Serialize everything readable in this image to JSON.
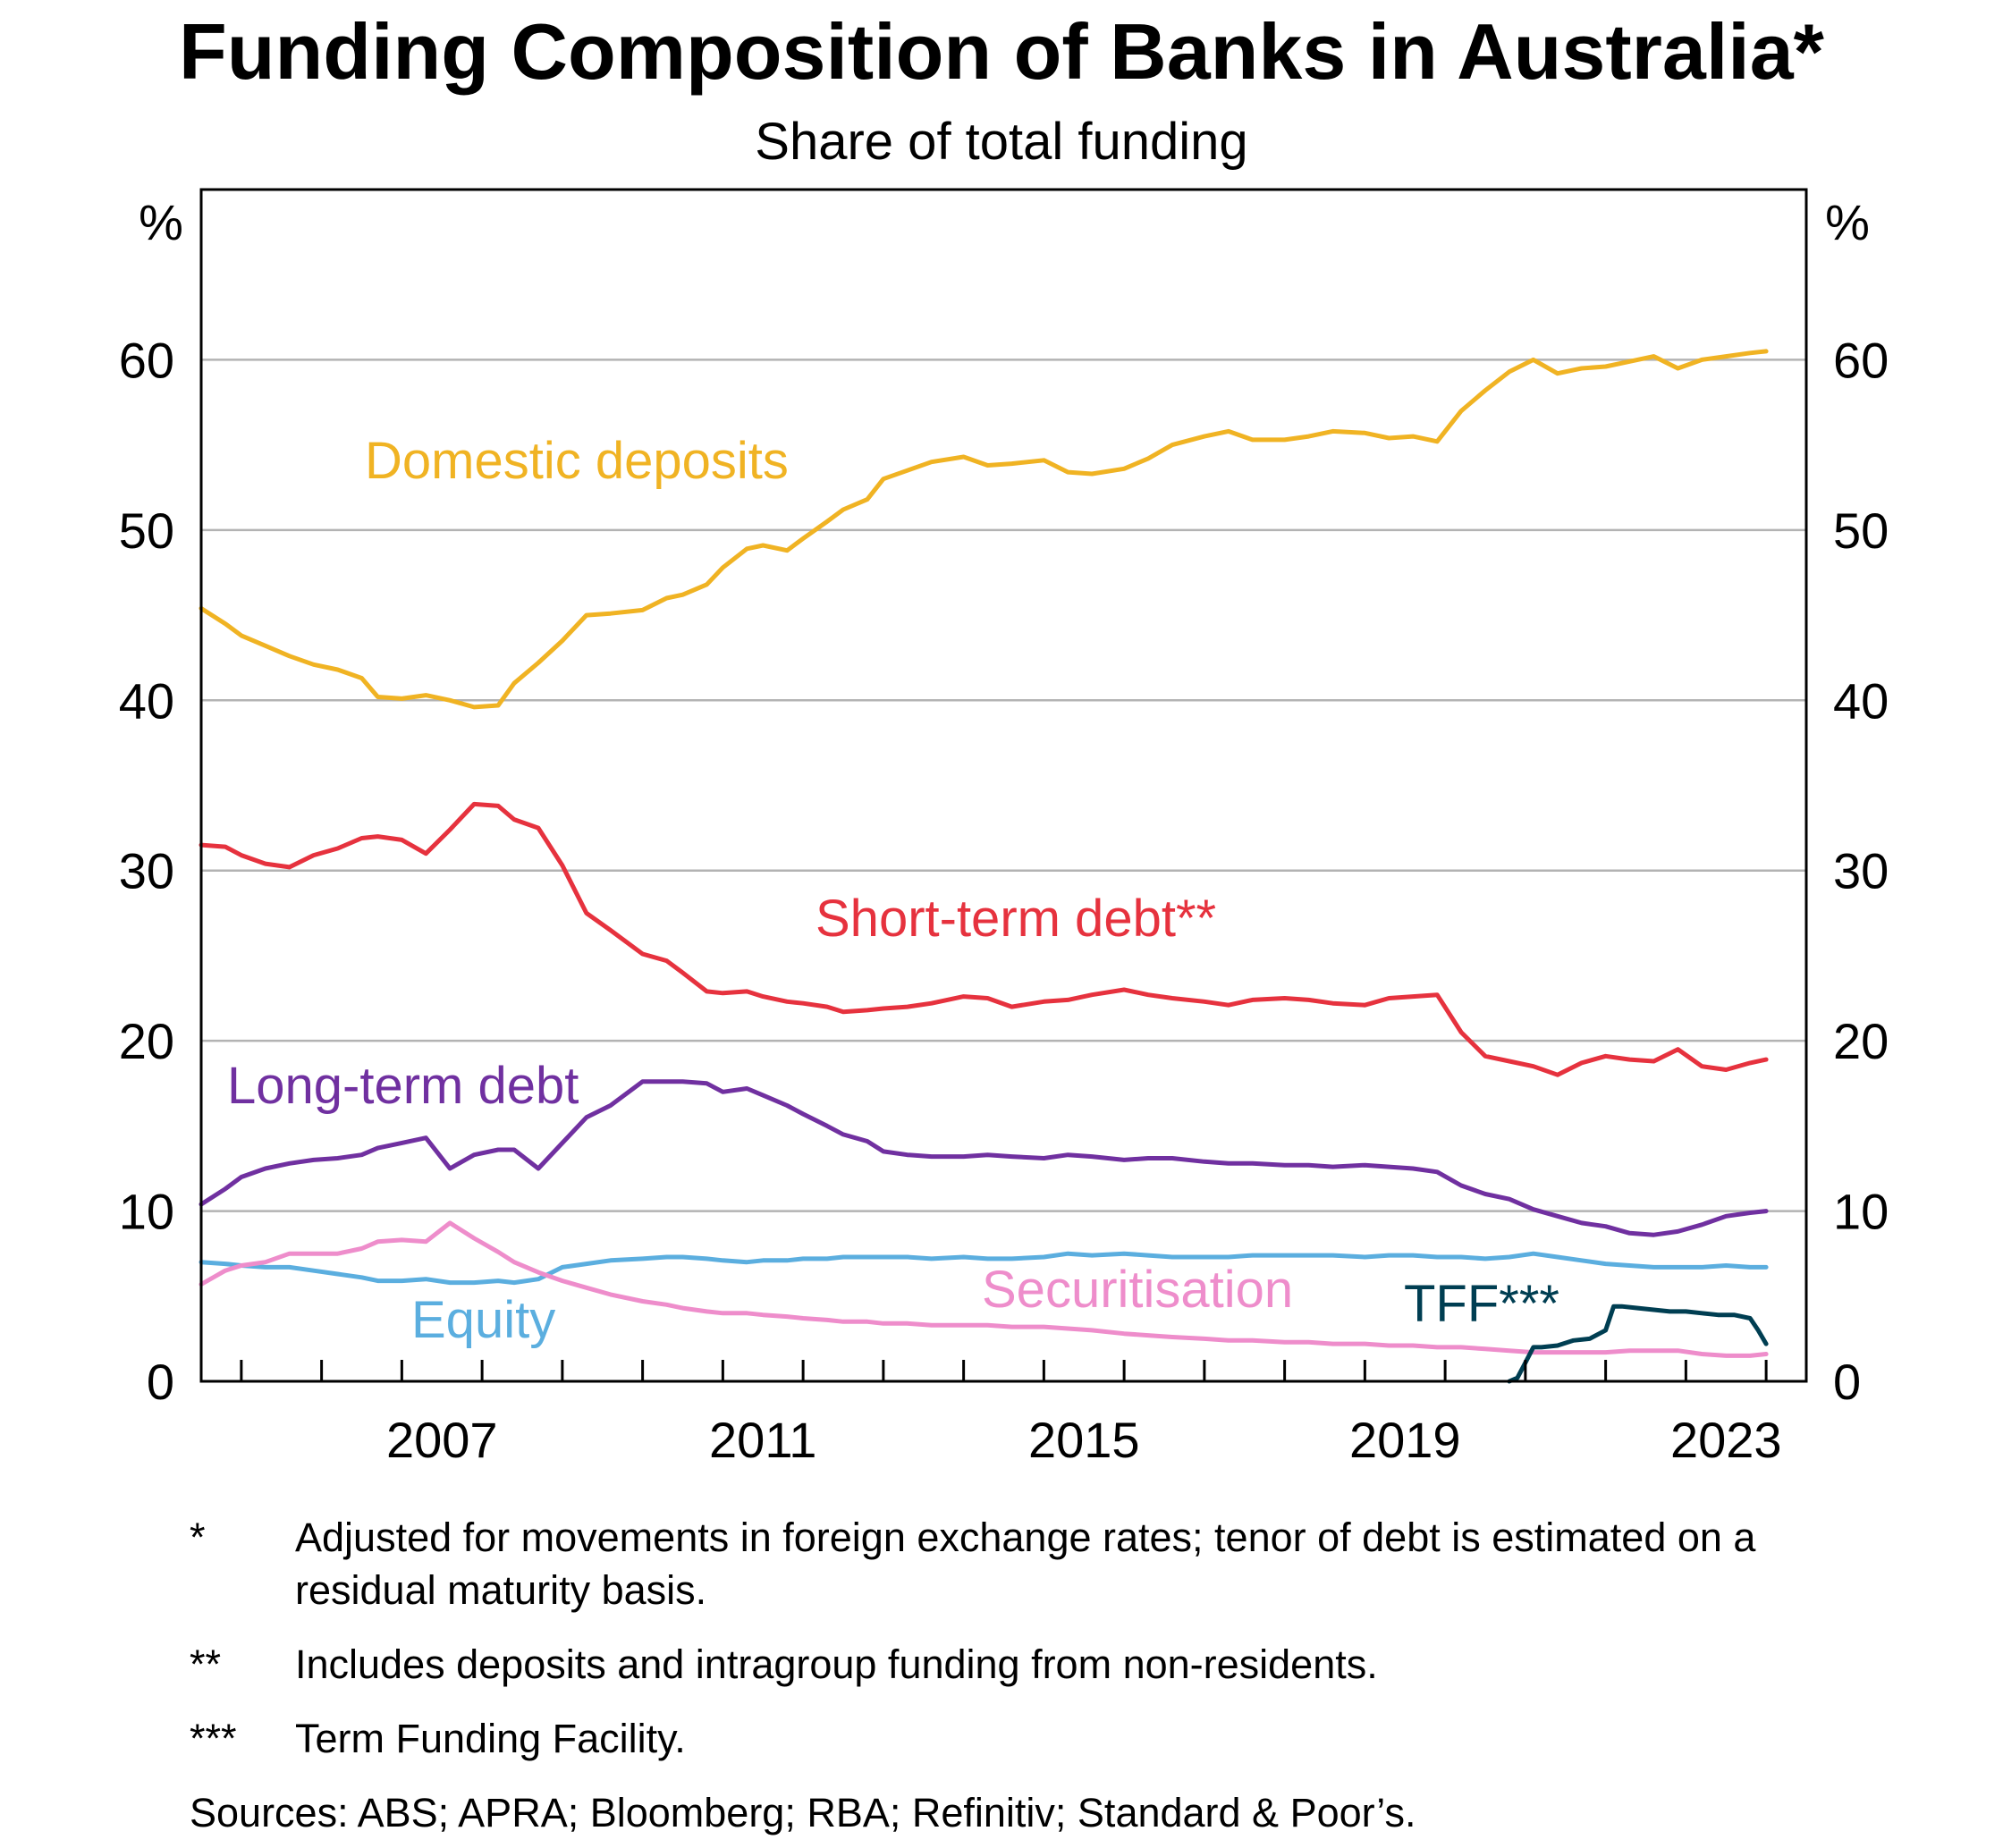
{
  "chart_data": {
    "type": "line",
    "title": "Funding Composition of Banks in Australia*",
    "subtitle": "Share of total funding",
    "ylabel_left": "%",
    "ylabel_right": "%",
    "ylim": [
      0,
      70
    ],
    "yticks": [
      0,
      10,
      20,
      30,
      40,
      50,
      60
    ],
    "xlim": [
      2004.5,
      2024.5
    ],
    "xtick_labels": [
      2007,
      2011,
      2015,
      2019,
      2023
    ],
    "xminor_ticks": [
      2005,
      2006,
      2007,
      2008,
      2009,
      2010,
      2011,
      2012,
      2013,
      2014,
      2015,
      2016,
      2017,
      2018,
      2019,
      2020,
      2021,
      2022,
      2023,
      2024
    ],
    "grid": true,
    "series": [
      {
        "name": "Domestic deposits",
        "color": "#F0B323",
        "x": [
          2004.5,
          2004.8,
          2005.0,
          2005.3,
          2005.6,
          2005.9,
          2006.2,
          2006.5,
          2006.7,
          2007.0,
          2007.3,
          2007.6,
          2007.9,
          2008.2,
          2008.4,
          2008.7,
          2009.0,
          2009.3,
          2009.6,
          2010.0,
          2010.3,
          2010.5,
          2010.8,
          2011.0,
          2011.3,
          2011.5,
          2011.8,
          2012.0,
          2012.3,
          2012.5,
          2012.8,
          2013.0,
          2013.3,
          2013.6,
          2014.0,
          2014.3,
          2014.6,
          2015.0,
          2015.3,
          2015.6,
          2016.0,
          2016.3,
          2016.6,
          2017.0,
          2017.3,
          2017.6,
          2018.0,
          2018.3,
          2018.6,
          2019.0,
          2019.3,
          2019.6,
          2019.9,
          2020.2,
          2020.5,
          2020.8,
          2021.1,
          2021.4,
          2021.7,
          2022.0,
          2022.3,
          2022.6,
          2022.9,
          2023.2,
          2023.5,
          2023.8,
          2024.0
        ],
        "values": [
          45.4,
          44.5,
          43.8,
          43.2,
          42.6,
          42.1,
          41.8,
          41.3,
          40.2,
          40.1,
          40.3,
          40.0,
          39.6,
          39.7,
          41.0,
          42.2,
          43.5,
          45.0,
          45.1,
          45.3,
          46.0,
          46.2,
          46.8,
          47.8,
          48.9,
          49.1,
          48.8,
          49.5,
          50.5,
          51.2,
          51.8,
          53.0,
          53.5,
          54.0,
          54.3,
          53.8,
          53.9,
          54.1,
          53.4,
          53.3,
          53.6,
          54.2,
          55.0,
          55.5,
          55.8,
          55.3,
          55.3,
          55.5,
          55.8,
          55.7,
          55.4,
          55.5,
          55.2,
          57.0,
          58.2,
          59.3,
          60.0,
          59.2,
          59.5,
          59.6,
          59.9,
          60.2,
          59.5,
          60.0,
          60.2,
          60.4,
          60.5
        ]
      },
      {
        "name": "Short-term debt**",
        "color": "#E6323E",
        "x": [
          2004.5,
          2004.8,
          2005.0,
          2005.3,
          2005.6,
          2005.9,
          2006.2,
          2006.5,
          2006.7,
          2007.0,
          2007.3,
          2007.6,
          2007.9,
          2008.2,
          2008.4,
          2008.7,
          2009.0,
          2009.3,
          2009.6,
          2010.0,
          2010.3,
          2010.5,
          2010.8,
          2011.0,
          2011.3,
          2011.5,
          2011.8,
          2012.0,
          2012.3,
          2012.5,
          2012.8,
          2013.0,
          2013.3,
          2013.6,
          2014.0,
          2014.3,
          2014.6,
          2015.0,
          2015.3,
          2015.6,
          2016.0,
          2016.3,
          2016.6,
          2017.0,
          2017.3,
          2017.6,
          2018.0,
          2018.3,
          2018.6,
          2019.0,
          2019.3,
          2019.6,
          2019.9,
          2020.2,
          2020.5,
          2020.8,
          2021.1,
          2021.4,
          2021.7,
          2022.0,
          2022.3,
          2022.6,
          2022.9,
          2023.2,
          2023.5,
          2023.8,
          2024.0
        ],
        "values": [
          31.5,
          31.4,
          30.9,
          30.4,
          30.2,
          30.9,
          31.3,
          31.9,
          32.0,
          31.8,
          31.0,
          32.4,
          33.9,
          33.8,
          33.0,
          32.5,
          30.3,
          27.5,
          26.5,
          25.1,
          24.7,
          24.0,
          22.9,
          22.8,
          22.9,
          22.6,
          22.3,
          22.2,
          22.0,
          21.7,
          21.8,
          21.9,
          22.0,
          22.2,
          22.6,
          22.5,
          22.0,
          22.3,
          22.4,
          22.7,
          23.0,
          22.7,
          22.5,
          22.3,
          22.1,
          22.4,
          22.5,
          22.4,
          22.2,
          22.1,
          22.5,
          22.6,
          22.7,
          20.5,
          19.1,
          18.8,
          18.5,
          18.0,
          18.7,
          19.1,
          18.9,
          18.8,
          19.5,
          18.5,
          18.3,
          18.7,
          18.9
        ]
      },
      {
        "name": "Long-term debt",
        "color": "#7030A0",
        "x": [
          2004.5,
          2004.8,
          2005.0,
          2005.3,
          2005.6,
          2005.9,
          2006.2,
          2006.5,
          2006.7,
          2007.0,
          2007.3,
          2007.6,
          2007.9,
          2008.2,
          2008.4,
          2008.7,
          2009.0,
          2009.3,
          2009.6,
          2010.0,
          2010.3,
          2010.5,
          2010.8,
          2011.0,
          2011.3,
          2011.5,
          2011.8,
          2012.0,
          2012.3,
          2012.5,
          2012.8,
          2013.0,
          2013.3,
          2013.6,
          2014.0,
          2014.3,
          2014.6,
          2015.0,
          2015.3,
          2015.6,
          2016.0,
          2016.3,
          2016.6,
          2017.0,
          2017.3,
          2017.6,
          2018.0,
          2018.3,
          2018.6,
          2019.0,
          2019.3,
          2019.6,
          2019.9,
          2020.2,
          2020.5,
          2020.8,
          2021.1,
          2021.4,
          2021.7,
          2022.0,
          2022.3,
          2022.6,
          2022.9,
          2023.2,
          2023.5,
          2023.8,
          2024.0
        ],
        "values": [
          10.4,
          11.3,
          12.0,
          12.5,
          12.8,
          13.0,
          13.1,
          13.3,
          13.7,
          14.0,
          14.3,
          12.5,
          13.3,
          13.6,
          13.6,
          12.5,
          14.0,
          15.5,
          16.2,
          17.6,
          17.6,
          17.6,
          17.5,
          17.0,
          17.2,
          16.8,
          16.2,
          15.7,
          15.0,
          14.5,
          14.1,
          13.5,
          13.3,
          13.2,
          13.2,
          13.3,
          13.2,
          13.1,
          13.3,
          13.2,
          13.0,
          13.1,
          13.1,
          12.9,
          12.8,
          12.8,
          12.7,
          12.7,
          12.6,
          12.7,
          12.6,
          12.5,
          12.3,
          11.5,
          11.0,
          10.7,
          10.1,
          9.7,
          9.3,
          9.1,
          8.7,
          8.6,
          8.8,
          9.2,
          9.7,
          9.9,
          10.0
        ]
      },
      {
        "name": "Equity",
        "color": "#5BAEDF",
        "x": [
          2004.5,
          2004.8,
          2005.0,
          2005.3,
          2005.6,
          2005.9,
          2006.2,
          2006.5,
          2006.7,
          2007.0,
          2007.3,
          2007.6,
          2007.9,
          2008.2,
          2008.4,
          2008.7,
          2009.0,
          2009.3,
          2009.6,
          2010.0,
          2010.3,
          2010.5,
          2010.8,
          2011.0,
          2011.3,
          2011.5,
          2011.8,
          2012.0,
          2012.3,
          2012.5,
          2012.8,
          2013.0,
          2013.3,
          2013.6,
          2014.0,
          2014.3,
          2014.6,
          2015.0,
          2015.3,
          2015.6,
          2016.0,
          2016.3,
          2016.6,
          2017.0,
          2017.3,
          2017.6,
          2018.0,
          2018.3,
          2018.6,
          2019.0,
          2019.3,
          2019.6,
          2019.9,
          2020.2,
          2020.5,
          2020.8,
          2021.1,
          2021.4,
          2021.7,
          2022.0,
          2022.3,
          2022.6,
          2022.9,
          2023.2,
          2023.5,
          2023.8,
          2024.0
        ],
        "values": [
          7.0,
          6.9,
          6.8,
          6.7,
          6.7,
          6.5,
          6.3,
          6.1,
          5.9,
          5.9,
          6.0,
          5.8,
          5.8,
          5.9,
          5.8,
          6.0,
          6.7,
          6.9,
          7.1,
          7.2,
          7.3,
          7.3,
          7.2,
          7.1,
          7.0,
          7.1,
          7.1,
          7.2,
          7.2,
          7.3,
          7.3,
          7.3,
          7.3,
          7.2,
          7.3,
          7.2,
          7.2,
          7.3,
          7.5,
          7.4,
          7.5,
          7.4,
          7.3,
          7.3,
          7.3,
          7.4,
          7.4,
          7.4,
          7.4,
          7.3,
          7.4,
          7.4,
          7.3,
          7.3,
          7.2,
          7.3,
          7.5,
          7.3,
          7.1,
          6.9,
          6.8,
          6.7,
          6.7,
          6.7,
          6.8,
          6.7,
          6.7
        ]
      },
      {
        "name": "Securitisation",
        "color": "#EE8DCB",
        "x": [
          2004.5,
          2004.8,
          2005.0,
          2005.3,
          2005.6,
          2005.9,
          2006.2,
          2006.5,
          2006.7,
          2007.0,
          2007.3,
          2007.6,
          2007.9,
          2008.2,
          2008.4,
          2008.7,
          2009.0,
          2009.3,
          2009.6,
          2010.0,
          2010.3,
          2010.5,
          2010.8,
          2011.0,
          2011.3,
          2011.5,
          2011.8,
          2012.0,
          2012.3,
          2012.5,
          2012.8,
          2013.0,
          2013.3,
          2013.6,
          2014.0,
          2014.3,
          2014.6,
          2015.0,
          2015.3,
          2015.6,
          2016.0,
          2016.3,
          2016.6,
          2017.0,
          2017.3,
          2017.6,
          2018.0,
          2018.3,
          2018.6,
          2019.0,
          2019.3,
          2019.6,
          2019.9,
          2020.2,
          2020.5,
          2020.8,
          2021.1,
          2021.4,
          2021.7,
          2022.0,
          2022.3,
          2022.6,
          2022.9,
          2023.2,
          2023.5,
          2023.8,
          2024.0
        ],
        "values": [
          5.7,
          6.5,
          6.8,
          7.0,
          7.5,
          7.5,
          7.5,
          7.8,
          8.2,
          8.3,
          8.2,
          9.3,
          8.4,
          7.6,
          7.0,
          6.4,
          5.9,
          5.5,
          5.1,
          4.7,
          4.5,
          4.3,
          4.1,
          4.0,
          4.0,
          3.9,
          3.8,
          3.7,
          3.6,
          3.5,
          3.5,
          3.4,
          3.4,
          3.3,
          3.3,
          3.3,
          3.2,
          3.2,
          3.1,
          3.0,
          2.8,
          2.7,
          2.6,
          2.5,
          2.4,
          2.4,
          2.3,
          2.3,
          2.2,
          2.2,
          2.1,
          2.1,
          2.0,
          2.0,
          1.9,
          1.8,
          1.7,
          1.7,
          1.7,
          1.7,
          1.8,
          1.8,
          1.8,
          1.6,
          1.5,
          1.5,
          1.6
        ]
      },
      {
        "name": "TFF***",
        "color": "#003E52",
        "x": [
          2020.8,
          2020.9,
          2021.0,
          2021.1,
          2021.2,
          2021.4,
          2021.6,
          2021.8,
          2022.0,
          2022.1,
          2022.2,
          2022.4,
          2022.6,
          2022.8,
          2023.0,
          2023.2,
          2023.4,
          2023.6,
          2023.8,
          2023.9,
          2024.0
        ],
        "values": [
          0.0,
          0.2,
          1.1,
          2.0,
          2.0,
          2.1,
          2.4,
          2.5,
          3.0,
          4.4,
          4.4,
          4.3,
          4.2,
          4.1,
          4.1,
          4.0,
          3.9,
          3.9,
          3.7,
          3.0,
          2.2
        ]
      }
    ],
    "annotations": [
      "Domestic deposits",
      "Short-term debt**",
      "Long-term debt",
      "Equity",
      "Securitisation",
      "TFF***"
    ]
  },
  "footnotes": [
    {
      "mark": "*",
      "text": "Adjusted for movements in foreign exchange rates; tenor of debt is estimated on a residual maturity basis."
    },
    {
      "mark": "**",
      "text": "Includes deposits and intragroup funding from non-residents."
    },
    {
      "mark": "***",
      "text": "Term Funding Facility."
    }
  ],
  "sources": "Sources: ABS; APRA; Bloomberg; RBA; Refinitiv; Standard & Poor’s."
}
